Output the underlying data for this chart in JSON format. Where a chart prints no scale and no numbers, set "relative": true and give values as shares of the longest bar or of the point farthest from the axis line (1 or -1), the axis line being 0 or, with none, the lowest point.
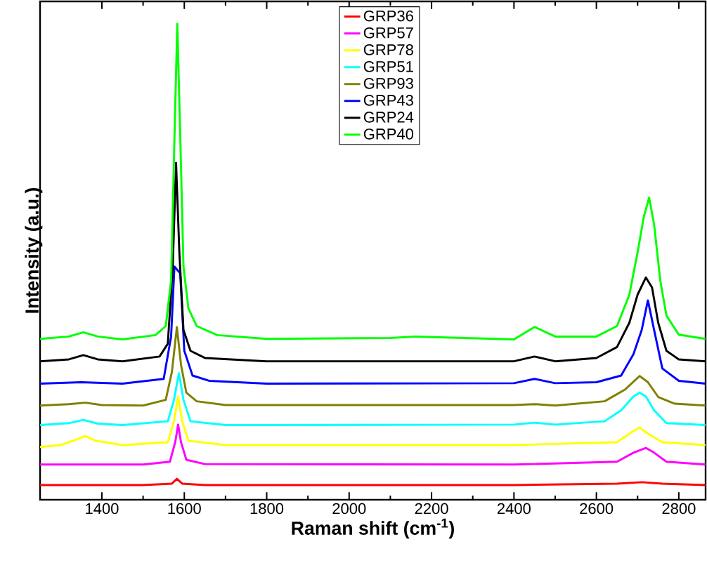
{
  "chart_data": {
    "type": "line",
    "relative": true,
    "xlabel": "Raman shift (cm$^{-1}$)",
    "ylabel": "Intensity (a.u.)",
    "xlim": [
      1250,
      2865
    ],
    "xticks": [
      1400,
      1600,
      1800,
      2000,
      2200,
      2400,
      2600,
      2800
    ],
    "legend": "top",
    "grid": false,
    "marker": "none",
    "line_style": "solid",
    "series": [
      {
        "name": "GRP36",
        "color": "#ff0000",
        "x": [
          1250,
          1500,
          1570,
          1582,
          1595,
          1650,
          2400,
          2650,
          2710,
          2760,
          2865
        ],
        "values": [
          0.031,
          0.031,
          0.034,
          0.044,
          0.034,
          0.031,
          0.031,
          0.034,
          0.037,
          0.034,
          0.031
        ]
      },
      {
        "name": "GRP57",
        "color": "#ff00ff",
        "x": [
          1250,
          1500,
          1565,
          1578,
          1585,
          1592,
          1605,
          1650,
          2400,
          2650,
          2690,
          2720,
          2740,
          2770,
          2865
        ],
        "values": [
          0.074,
          0.074,
          0.08,
          0.121,
          0.158,
          0.121,
          0.084,
          0.075,
          0.074,
          0.08,
          0.099,
          0.109,
          0.099,
          0.08,
          0.074
        ]
      },
      {
        "name": "GRP78",
        "color": "#ffff00",
        "x": [
          1250,
          1300,
          1340,
          1360,
          1385,
          1450,
          1560,
          1575,
          1585,
          1595,
          1610,
          1700,
          2400,
          2650,
          2685,
          2705,
          2725,
          2760,
          2865
        ],
        "values": [
          0.111,
          0.115,
          0.127,
          0.134,
          0.124,
          0.115,
          0.121,
          0.165,
          0.217,
          0.165,
          0.124,
          0.115,
          0.115,
          0.121,
          0.142,
          0.152,
          0.139,
          0.121,
          0.115
        ]
      },
      {
        "name": "GRP51",
        "color": "#00ffff",
        "x": [
          1250,
          1320,
          1355,
          1390,
          1450,
          1560,
          1575,
          1587,
          1598,
          1615,
          1700,
          2400,
          2450,
          2500,
          2620,
          2660,
          2690,
          2705,
          2720,
          2740,
          2770,
          2865
        ],
        "values": [
          0.157,
          0.161,
          0.168,
          0.16,
          0.157,
          0.165,
          0.21,
          0.266,
          0.21,
          0.165,
          0.157,
          0.158,
          0.162,
          0.158,
          0.165,
          0.188,
          0.217,
          0.225,
          0.217,
          0.188,
          0.161,
          0.157
        ]
      },
      {
        "name": "GRP93",
        "color": "#808000",
        "x": [
          1250,
          1320,
          1360,
          1400,
          1500,
          1555,
          1570,
          1582,
          1592,
          1605,
          1630,
          1700,
          2400,
          2450,
          2500,
          2620,
          2670,
          2705,
          2725,
          2750,
          2790,
          2865
        ],
        "values": [
          0.198,
          0.201,
          0.204,
          0.199,
          0.198,
          0.21,
          0.269,
          0.363,
          0.284,
          0.225,
          0.207,
          0.199,
          0.199,
          0.201,
          0.198,
          0.207,
          0.232,
          0.26,
          0.247,
          0.216,
          0.202,
          0.198
        ]
      },
      {
        "name": "GRP43",
        "color": "#0000ff",
        "x": [
          1250,
          1350,
          1450,
          1550,
          1568,
          1576,
          1583,
          1590,
          1600,
          1620,
          1660,
          1800,
          2400,
          2450,
          2500,
          2600,
          2660,
          2690,
          2710,
          2725,
          2740,
          2760,
          2800,
          2865
        ],
        "values": [
          0.244,
          0.247,
          0.244,
          0.254,
          0.343,
          0.49,
          null,
          0.476,
          0.313,
          0.261,
          0.25,
          0.244,
          0.245,
          0.254,
          0.245,
          0.247,
          0.261,
          0.306,
          0.357,
          0.419,
          0.357,
          0.276,
          0.25,
          0.244
        ]
      },
      {
        "name": "GRP24",
        "color": "#000000",
        "x": [
          1250,
          1320,
          1355,
          1390,
          1450,
          1540,
          1560,
          1572,
          1580,
          1588,
          1598,
          1615,
          1650,
          1800,
          2400,
          2450,
          2500,
          2600,
          2650,
          2680,
          2700,
          2720,
          2735,
          2750,
          2770,
          2800,
          2865
        ],
        "values": [
          0.291,
          0.295,
          0.304,
          0.295,
          0.291,
          0.301,
          0.328,
          0.49,
          0.708,
          0.52,
          0.357,
          0.313,
          0.298,
          0.291,
          0.291,
          0.301,
          0.291,
          0.298,
          0.321,
          0.372,
          0.431,
          0.467,
          0.446,
          0.372,
          0.313,
          0.295,
          0.291
        ]
      },
      {
        "name": "GRP40",
        "color": "#00ff00",
        "x": [
          1250,
          1320,
          1355,
          1390,
          1450,
          1530,
          1555,
          1568,
          1576,
          1583,
          1590,
          1598,
          1610,
          1630,
          1680,
          1800,
          2100,
          2160,
          2400,
          2450,
          2500,
          2600,
          2650,
          2680,
          2700,
          2715,
          2728,
          2740,
          2755,
          2770,
          2800,
          2865
        ],
        "values": [
          0.338,
          0.343,
          0.352,
          0.343,
          0.337,
          0.346,
          0.365,
          0.461,
          0.756,
          1.0,
          0.771,
          0.49,
          0.402,
          0.365,
          0.346,
          0.338,
          0.34,
          0.343,
          0.337,
          0.363,
          0.343,
          0.343,
          0.365,
          0.431,
          0.52,
          0.594,
          0.635,
          0.579,
          0.461,
          0.387,
          0.347,
          0.338
        ]
      }
    ]
  }
}
